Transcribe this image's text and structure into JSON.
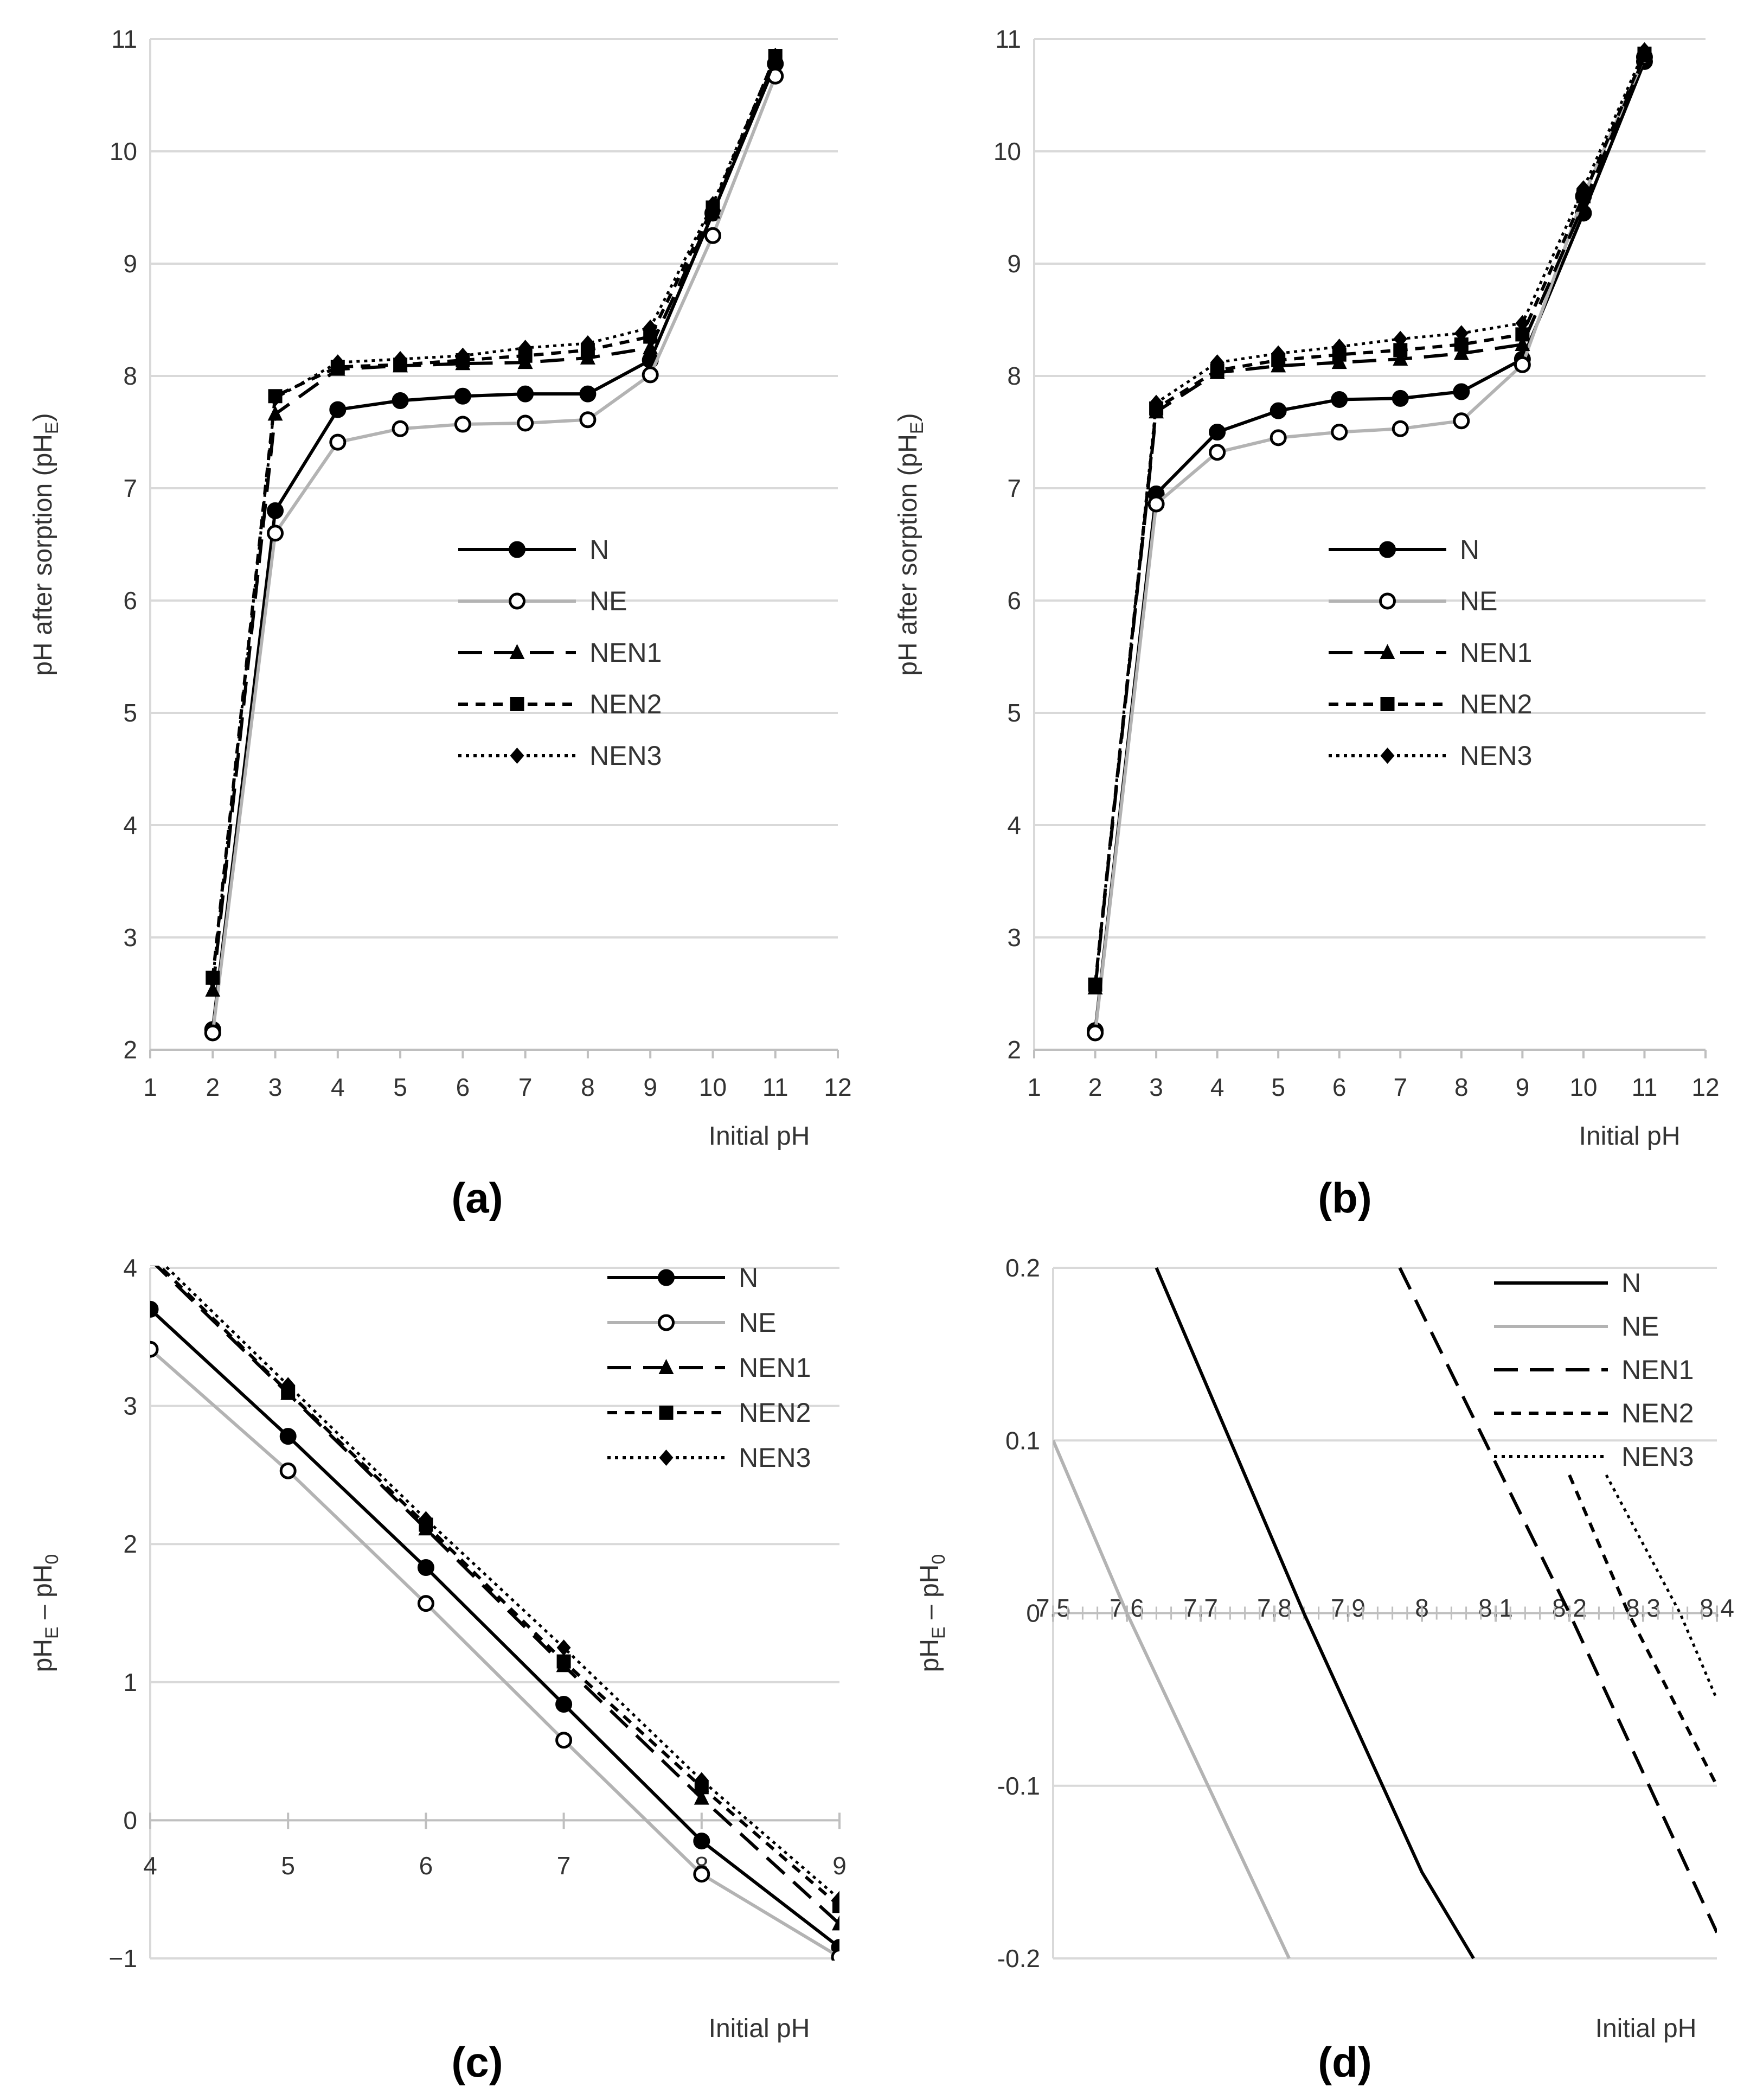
{
  "chart_data": [
    {
      "panel_label": "(a)",
      "type": "line",
      "xlabel": "Initial pH",
      "ylabel": "pH after sorption (pH",
      "ylabel_sub": "E",
      "ylabel_end": ")",
      "xlim": [
        1,
        12
      ],
      "ylim": [
        2,
        11
      ],
      "xticks": [
        1,
        2,
        3,
        4,
        5,
        6,
        7,
        8,
        9,
        10,
        11,
        12
      ],
      "yticks": [
        2,
        3,
        4,
        5,
        6,
        7,
        8,
        9,
        10,
        11
      ],
      "grid": "horizontal",
      "legend_position": "center-right",
      "x": [
        2,
        3,
        4,
        5,
        6,
        7,
        8,
        9,
        10,
        11
      ],
      "series": [
        {
          "name": "N",
          "values": [
            2.18,
            6.8,
            7.7,
            7.78,
            7.82,
            7.84,
            7.84,
            8.14,
            9.45,
            10.78
          ],
          "color": "#000000",
          "line": "solid",
          "marker": "circle-filled"
        },
        {
          "name": "NE",
          "values": [
            2.15,
            6.6,
            7.41,
            7.53,
            7.57,
            7.58,
            7.61,
            8.01,
            9.25,
            10.67
          ],
          "color": "#b3b3b3",
          "line": "solid",
          "marker": "circle-open"
        },
        {
          "name": "NEN1",
          "values": [
            2.53,
            7.66,
            8.06,
            8.09,
            8.11,
            8.12,
            8.16,
            8.25,
            9.46,
            10.82
          ],
          "color": "#000000",
          "line": "longdash",
          "marker": "triangle"
        },
        {
          "name": "NEN2",
          "values": [
            2.64,
            7.82,
            8.08,
            8.1,
            8.14,
            8.18,
            8.23,
            8.35,
            9.5,
            10.85
          ],
          "color": "#000000",
          "line": "shortdash",
          "marker": "square"
        },
        {
          "name": "NEN3",
          "values": [
            2.62,
            7.8,
            8.12,
            8.15,
            8.18,
            8.25,
            8.29,
            8.43,
            9.53,
            10.85
          ],
          "color": "#000000",
          "line": "dotted",
          "marker": "diamond"
        }
      ]
    },
    {
      "panel_label": "(b)",
      "type": "line",
      "xlabel": "Initial pH",
      "ylabel": "pH after sorption (pH",
      "ylabel_sub": "E",
      "ylabel_end": ")",
      "xlim": [
        1,
        12
      ],
      "ylim": [
        2,
        11
      ],
      "xticks": [
        1,
        2,
        3,
        4,
        5,
        6,
        7,
        8,
        9,
        10,
        11,
        12
      ],
      "yticks": [
        2,
        3,
        4,
        5,
        6,
        7,
        8,
        9,
        10,
        11
      ],
      "grid": "horizontal",
      "legend_position": "center-right",
      "x": [
        2,
        3,
        4,
        5,
        6,
        7,
        8,
        9,
        10,
        11
      ],
      "series": [
        {
          "name": "N",
          "values": [
            2.17,
            6.95,
            7.5,
            7.69,
            7.79,
            7.8,
            7.86,
            8.15,
            9.45,
            10.8
          ],
          "color": "#000000",
          "line": "solid",
          "marker": "circle-filled"
        },
        {
          "name": "NE",
          "values": [
            2.15,
            6.86,
            7.32,
            7.45,
            7.5,
            7.53,
            7.6,
            8.1,
            9.6,
            10.84
          ],
          "color": "#b3b3b3",
          "line": "solid",
          "marker": "circle-open"
        },
        {
          "name": "NEN1",
          "values": [
            2.55,
            7.68,
            8.03,
            8.09,
            8.12,
            8.15,
            8.2,
            8.28,
            9.52,
            10.85
          ],
          "color": "#000000",
          "line": "longdash",
          "marker": "triangle"
        },
        {
          "name": "NEN2",
          "values": [
            2.58,
            7.71,
            8.05,
            8.14,
            8.19,
            8.23,
            8.28,
            8.37,
            9.6,
            10.87
          ],
          "color": "#000000",
          "line": "shortdash",
          "marker": "square"
        },
        {
          "name": "NEN3",
          "values": [
            2.57,
            7.76,
            8.12,
            8.2,
            8.26,
            8.33,
            8.38,
            8.47,
            9.67,
            10.9
          ],
          "color": "#000000",
          "line": "dotted",
          "marker": "diamond"
        }
      ]
    },
    {
      "panel_label": "(c)",
      "type": "line",
      "xlabel": "Initial pH",
      "ylabel": "pH",
      "ylabel_sub": "E",
      "ylabel_mid": " – pH",
      "ylabel_sub2": "0",
      "xlim": [
        4,
        9
      ],
      "ylim": [
        -1,
        4
      ],
      "xticks": [
        4,
        5,
        6,
        7,
        8,
        9
      ],
      "yticks": [
        -1,
        0,
        1,
        2,
        3,
        4
      ],
      "ytick_labels": [
        "−1",
        "0",
        "1",
        "2",
        "3",
        "4"
      ],
      "grid": "horizontal",
      "legend_position": "top-right",
      "x": [
        4,
        5,
        6,
        7,
        8,
        9
      ],
      "series": [
        {
          "name": "N",
          "values": [
            3.7,
            2.78,
            1.83,
            0.84,
            -0.15,
            -0.92
          ],
          "color": "#000000",
          "line": "solid",
          "marker": "circle-filled"
        },
        {
          "name": "NE",
          "values": [
            3.41,
            2.53,
            1.57,
            0.58,
            -0.39,
            -0.99
          ],
          "color": "#b3b3b3",
          "line": "solid",
          "marker": "circle-open"
        },
        {
          "name": "NEN1",
          "values": [
            4.06,
            3.09,
            2.11,
            1.12,
            0.16,
            -0.75
          ],
          "color": "#000000",
          "line": "longdash",
          "marker": "triangle"
        },
        {
          "name": "NEN2",
          "values": [
            4.08,
            3.1,
            2.14,
            1.15,
            0.24,
            -0.62
          ],
          "color": "#000000",
          "line": "shortdash",
          "marker": "square"
        },
        {
          "name": "NEN3",
          "values": [
            4.12,
            3.15,
            2.18,
            1.25,
            0.29,
            -0.57
          ],
          "color": "#000000",
          "line": "dotted",
          "marker": "diamond"
        }
      ]
    },
    {
      "panel_label": "(d)",
      "type": "line",
      "xlabel": "Initial pH",
      "ylabel": "pH",
      "ylabel_sub": "E",
      "ylabel_mid": " – pH",
      "ylabel_sub2": "0",
      "xlim": [
        7.5,
        8.4
      ],
      "ylim": [
        -0.2,
        0.2
      ],
      "xticks": [
        7.5,
        7.6,
        7.7,
        7.8,
        7.9,
        8,
        8.1,
        8.2,
        8.3,
        8.4
      ],
      "yticks": [
        -0.2,
        -0.1,
        0,
        0.1,
        0.2
      ],
      "ytick_labels": [
        "-0.2",
        "-0.1",
        "0",
        "0.1",
        "0.2"
      ],
      "grid": "horizontal",
      "legend_position": "top-right",
      "series": [
        {
          "name": "N",
          "x": [
            7.64,
            7.84,
            8.0,
            8.07
          ],
          "values": [
            0.2,
            0.0,
            -0.15,
            -0.2
          ],
          "color": "#000000",
          "line": "solid"
        },
        {
          "name": "NE",
          "x": [
            7.5,
            7.6,
            7.82
          ],
          "values": [
            0.1,
            0.0,
            -0.2
          ],
          "color": "#b3b3b3",
          "line": "solid"
        },
        {
          "name": "NEN1",
          "x": [
            7.97,
            8.2,
            8.4
          ],
          "values": [
            0.2,
            0.0,
            -0.185
          ],
          "color": "#000000",
          "line": "longdash"
        },
        {
          "name": "NEN2",
          "x": [
            8.2,
            8.28,
            8.4
          ],
          "values": [
            0.08,
            0.0,
            -0.1
          ],
          "color": "#000000",
          "line": "shortdash"
        },
        {
          "name": "NEN3",
          "x": [
            8.25,
            8.35,
            8.4
          ],
          "values": [
            0.08,
            0.0,
            -0.05
          ],
          "color": "#000000",
          "line": "dotted"
        }
      ]
    }
  ]
}
